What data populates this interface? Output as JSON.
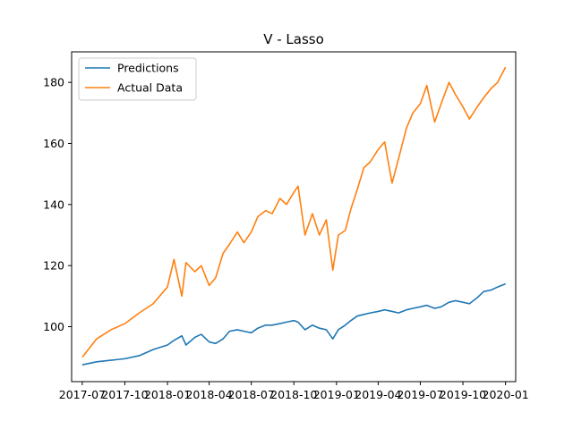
{
  "chart_data": {
    "type": "line",
    "title": "V - Lasso",
    "xlabel": "",
    "ylabel": "",
    "x_tick_labels": [
      "2017-07",
      "2017-10",
      "2018-01",
      "2018-04",
      "2018-07",
      "2018-10",
      "2019-01",
      "2019-04",
      "2019-07",
      "2019-10",
      "2020-01"
    ],
    "y_ticks": [
      100,
      120,
      140,
      160,
      180
    ],
    "ylim": [
      82,
      190
    ],
    "xlim": [
      "2017-06-08",
      "2020-01-23"
    ],
    "grid": false,
    "legend_position": "top-left",
    "colors": {
      "Predictions": "#1f77b4",
      "Actual Data": "#ff7f0e"
    },
    "x": [
      "2017-07-01",
      "2017-08-01",
      "2017-09-01",
      "2017-10-01",
      "2017-11-01",
      "2017-12-01",
      "2018-01-01",
      "2018-01-15",
      "2018-02-01",
      "2018-02-10",
      "2018-03-01",
      "2018-03-15",
      "2018-04-01",
      "2018-04-15",
      "2018-05-01",
      "2018-05-15",
      "2018-06-01",
      "2018-06-15",
      "2018-07-01",
      "2018-07-15",
      "2018-08-01",
      "2018-08-15",
      "2018-09-01",
      "2018-09-15",
      "2018-10-01",
      "2018-10-10",
      "2018-10-25",
      "2018-11-10",
      "2018-11-25",
      "2018-12-10",
      "2018-12-24",
      "2019-01-05",
      "2019-01-20",
      "2019-02-01",
      "2019-02-15",
      "2019-03-01",
      "2019-03-15",
      "2019-04-01",
      "2019-04-15",
      "2019-05-01",
      "2019-05-15",
      "2019-06-01",
      "2019-06-15",
      "2019-07-01",
      "2019-07-15",
      "2019-08-01",
      "2019-08-15",
      "2019-09-01",
      "2019-09-15",
      "2019-10-01",
      "2019-10-15",
      "2019-11-01",
      "2019-11-15",
      "2019-12-01",
      "2019-12-15",
      "2020-01-01"
    ],
    "series": [
      {
        "name": "Predictions",
        "values": [
          87.5,
          88.5,
          89.0,
          89.5,
          90.5,
          92.5,
          94.0,
          95.5,
          97.0,
          94.0,
          96.5,
          97.5,
          95.0,
          94.5,
          96.0,
          98.5,
          99.0,
          98.5,
          98.0,
          99.5,
          100.5,
          100.5,
          101.0,
          101.5,
          102.0,
          101.5,
          99.0,
          100.5,
          99.5,
          99.0,
          96.0,
          99.0,
          100.5,
          102.0,
          103.5,
          104.0,
          104.5,
          105.0,
          105.5,
          105.0,
          104.5,
          105.5,
          106.0,
          106.5,
          107.0,
          106.0,
          106.5,
          108.0,
          108.5,
          108.0,
          107.5,
          109.5,
          111.5,
          112.0,
          113.0,
          114.0
        ]
      },
      {
        "name": "Actual Data",
        "values": [
          90.0,
          96.0,
          99.0,
          101.0,
          104.5,
          107.5,
          113.0,
          122.0,
          110.0,
          121.0,
          118.0,
          120.0,
          113.5,
          116.0,
          124.0,
          127.0,
          131.0,
          127.5,
          131.0,
          136.0,
          138.0,
          137.0,
          142.0,
          140.0,
          144.0,
          146.0,
          130.0,
          137.0,
          130.0,
          135.0,
          118.5,
          130.0,
          131.5,
          138.5,
          145.0,
          152.0,
          154.0,
          158.0,
          160.5,
          147.0,
          155.0,
          165.0,
          170.0,
          173.0,
          179.0,
          167.0,
          173.0,
          180.0,
          176.0,
          172.0,
          168.0,
          172.0,
          175.0,
          178.0,
          180.0,
          185.0
        ]
      }
    ]
  }
}
